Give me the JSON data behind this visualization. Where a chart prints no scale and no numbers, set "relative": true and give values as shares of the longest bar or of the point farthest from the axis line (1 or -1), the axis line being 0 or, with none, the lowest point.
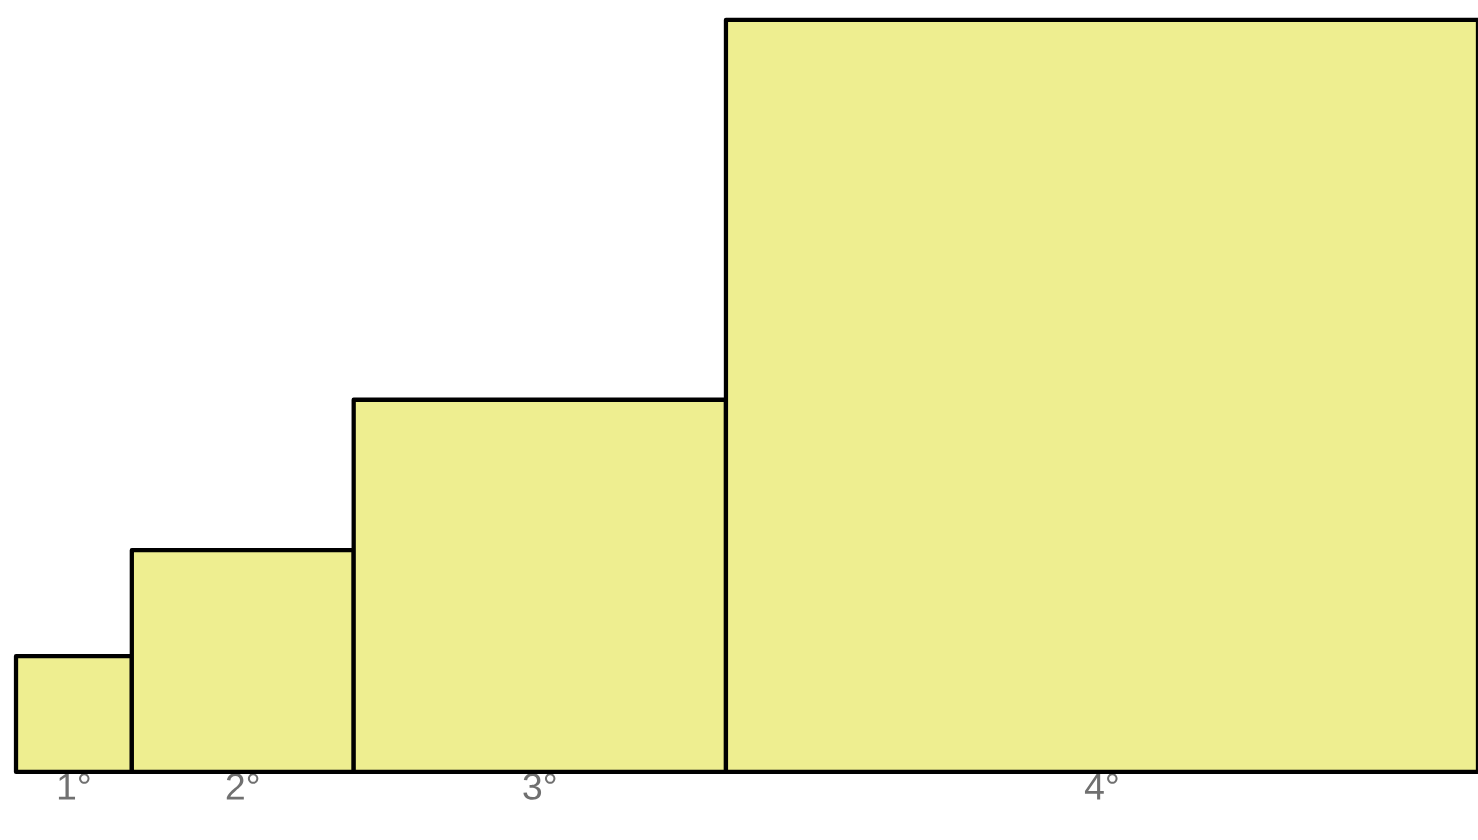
{
  "chart_data": {
    "type": "bar",
    "relative": true,
    "categories": [
      "1°",
      "2°",
      "3°",
      "4°"
    ],
    "values": [
      0.154,
      0.295,
      0.495,
      1
    ],
    "color": "#eeee90"
  }
}
